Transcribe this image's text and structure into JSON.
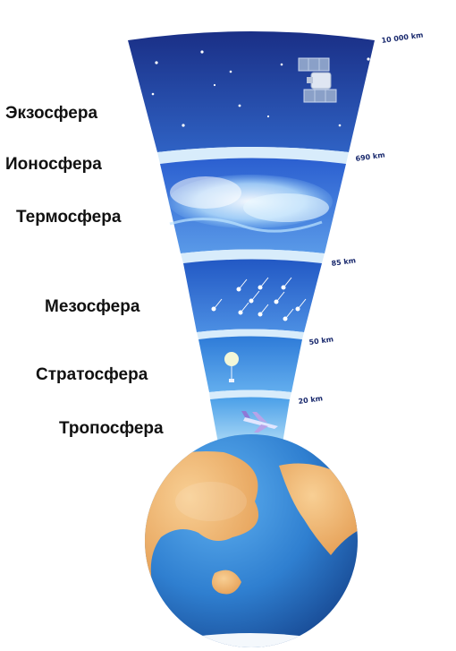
{
  "layers": [
    {
      "name": "Экзосфера",
      "icon": "satellite-icon"
    },
    {
      "name": "Ионосфера"
    },
    {
      "name": "Термосфера",
      "icon": "aurora-icon"
    },
    {
      "name": "Мезосфера",
      "icon": "meteor-icon"
    },
    {
      "name": "Стратосфера",
      "icon": "weather-balloon-icon"
    },
    {
      "name": "Тропосфера",
      "icon": "airplane-icon"
    }
  ],
  "altitudes": [
    "10 000 km",
    "690 km",
    "85 km",
    "50 km",
    "20 km"
  ],
  "colors": {
    "exosphere": "#1f3f9a",
    "thermosphere": "#3f7fdc",
    "mesosphere": "#2e6cd0",
    "stratosphere": "#3f93e0",
    "troposphere": "#64b4ee",
    "separator": "#d8ecfb",
    "ocean": "#2f7fd0",
    "land": "#f1b56e",
    "label_text": "#111111",
    "altitude_text": "#1a2a6e"
  }
}
